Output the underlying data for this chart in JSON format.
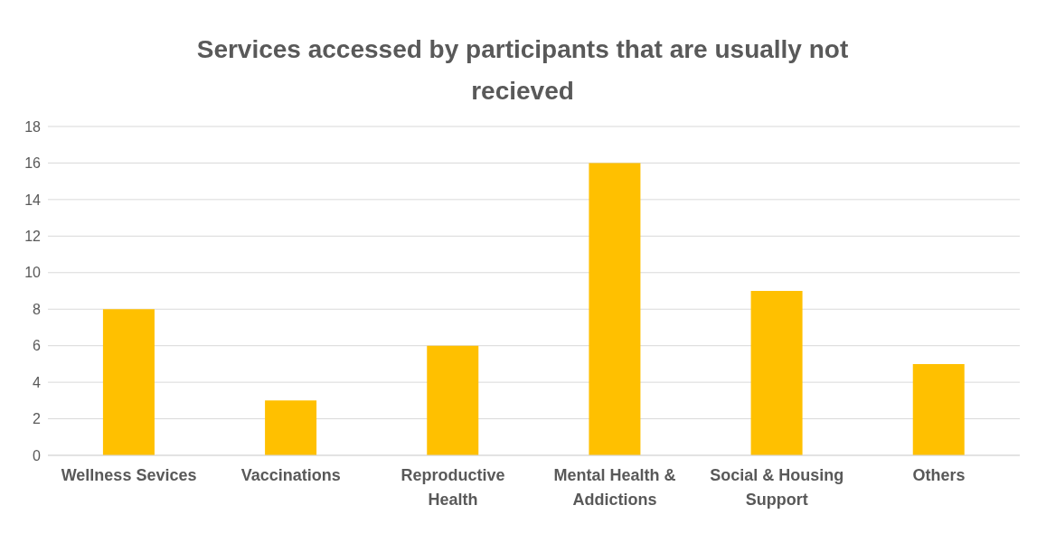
{
  "chart_data": {
    "type": "bar",
    "title": "Services accessed by participants that are usually not recieved",
    "categories": [
      "Wellness Sevices",
      "Vaccinations",
      "Reproductive Health",
      "Mental Health & Addictions",
      "Social & Housing Support",
      "Others"
    ],
    "values": [
      8,
      3,
      6,
      16,
      9,
      5
    ],
    "color": "#ffc000",
    "ylim": [
      0,
      18
    ],
    "yticks": [
      0,
      2,
      4,
      6,
      8,
      10,
      12,
      14,
      16,
      18
    ],
    "grid": "y",
    "legend": false
  }
}
